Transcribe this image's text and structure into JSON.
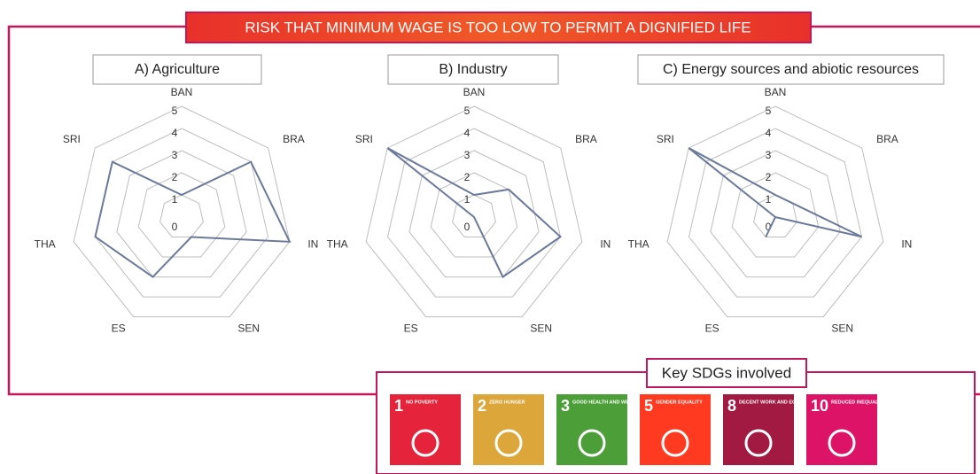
{
  "title": "RISK THAT MINIMUM WAGE IS TOO LOW TO PERMIT A DIGNIFIED LIFE",
  "chart_data": [
    {
      "type": "radar",
      "title": "A) Agriculture",
      "categories": [
        "BAN",
        "BRA",
        "IN",
        "SEN",
        "ES",
        "THA",
        "SRI"
      ],
      "values": [
        1,
        4,
        5,
        1,
        3,
        4,
        4
      ],
      "color": "#6b7a9c",
      "rlim": [
        0,
        5
      ],
      "rticks": [
        0,
        1,
        2,
        3,
        4,
        5
      ]
    },
    {
      "type": "radar",
      "title": "B) Industry",
      "categories": [
        "BAN",
        "BRA",
        "IN",
        "SEN",
        "ES",
        "THA",
        "SRI"
      ],
      "values": [
        1,
        2,
        4,
        3,
        0,
        0,
        5
      ],
      "color": "#6b7a9c",
      "rlim": [
        0,
        5
      ],
      "rticks": [
        0,
        1,
        2,
        3,
        4,
        5
      ]
    },
    {
      "type": "radar",
      "title": "C) Energy sources and abiotic resources",
      "categories": [
        "BAN",
        "BRA",
        "IN",
        "SEN",
        "ES",
        "THA",
        "SRI"
      ],
      "values": [
        1,
        1,
        4,
        0,
        1,
        0,
        5
      ],
      "color": "#6b7a9c",
      "rlim": [
        0,
        5
      ],
      "rticks": [
        0,
        1,
        2,
        3,
        4,
        5
      ]
    }
  ],
  "sdgs": {
    "title": "Key SDGs involved",
    "items": [
      {
        "number": 1,
        "label": "NO POVERTY",
        "color": "#e5243b"
      },
      {
        "number": 2,
        "label": "ZERO HUNGER",
        "color": "#dda63a"
      },
      {
        "number": 3,
        "label": "GOOD HEALTH AND WELL-BEING",
        "color": "#4c9f38"
      },
      {
        "number": 5,
        "label": "GENDER EQUALITY",
        "color": "#ff3a21"
      },
      {
        "number": 8,
        "label": "DECENT WORK AND ECONOMIC GROWTH",
        "color": "#a21942"
      },
      {
        "number": 10,
        "label": "REDUCED INEQUALITIES",
        "color": "#dd1367"
      }
    ]
  }
}
